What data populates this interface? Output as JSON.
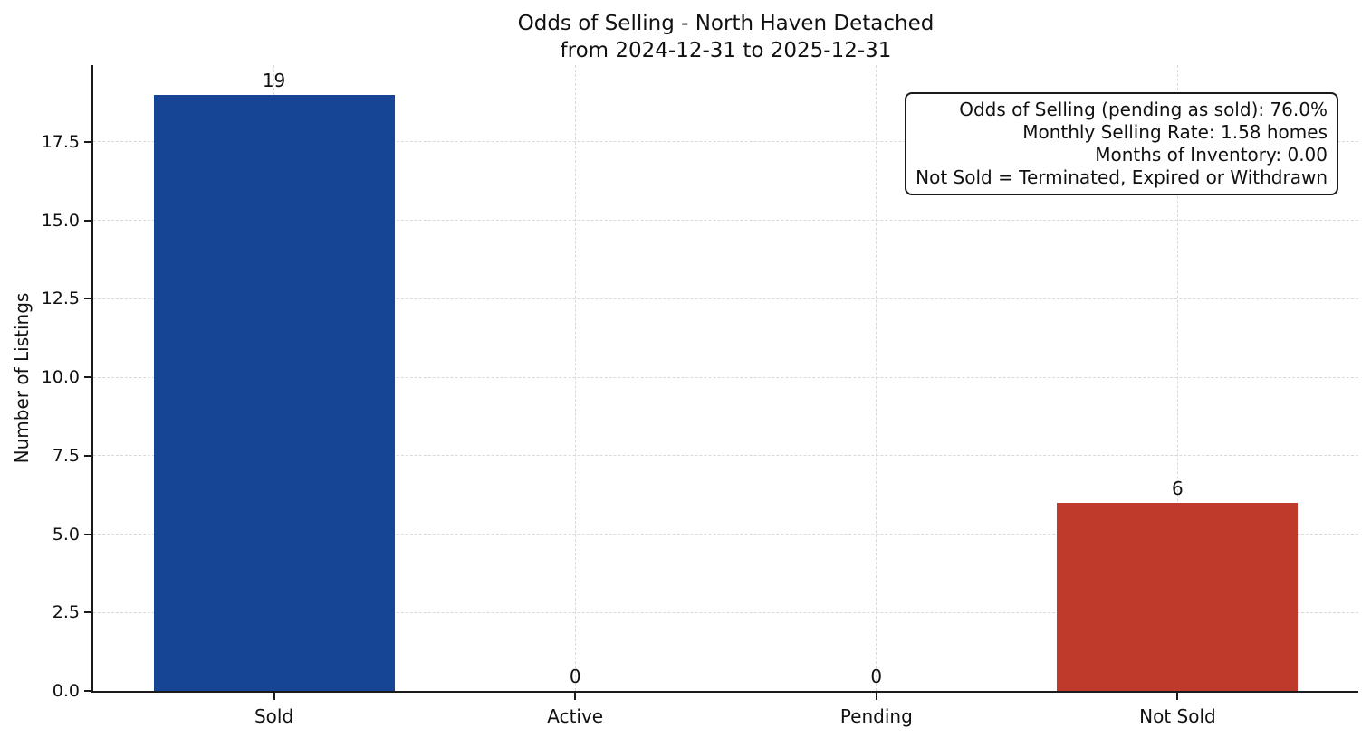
{
  "figure": {
    "title_line1": "Odds of Selling - North Haven Detached",
    "title_line2": "from 2024-12-31 to 2025-12-31",
    "ylabel": "Number of Listings"
  },
  "annotation": {
    "lines": [
      "Odds of Selling (pending as sold): 76.0%",
      "Monthly Selling Rate: 1.58 homes",
      "Months of Inventory: 0.00",
      "Not Sold = Terminated, Expired or Withdrawn"
    ]
  },
  "colors": {
    "sold_bar": "#164595",
    "not_sold_bar": "#c03a2b",
    "spine": "#1a1a1a",
    "grid": "#d9d9d9"
  },
  "chart_data": {
    "type": "bar",
    "title": "Odds of Selling - North Haven Detached\nfrom 2024-12-31 to 2025-12-31",
    "categories": [
      "Sold",
      "Active",
      "Pending",
      "Not Sold"
    ],
    "values": [
      19,
      0,
      0,
      6
    ],
    "bar_labels": [
      "19",
      "0",
      "0",
      "6"
    ],
    "bar_colors": [
      "#164595",
      null,
      null,
      "#c03a2b"
    ],
    "xlabel": "",
    "ylabel": "Number of Listings",
    "ylim": [
      0,
      19.95
    ],
    "yticks": [
      0.0,
      2.5,
      5.0,
      7.5,
      10.0,
      12.5,
      15.0,
      17.5
    ],
    "ytick_labels": [
      "0.0",
      "2.5",
      "5.0",
      "7.5",
      "10.0",
      "12.5",
      "15.0",
      "17.5"
    ],
    "grid": true,
    "grid_style": "dashed",
    "legend": null,
    "annotation_box": "Odds of Selling (pending as sold): 76.0% | Monthly Selling Rate: 1.58 homes | Months of Inventory: 0.00 | Not Sold = Terminated, Expired or Withdrawn"
  }
}
